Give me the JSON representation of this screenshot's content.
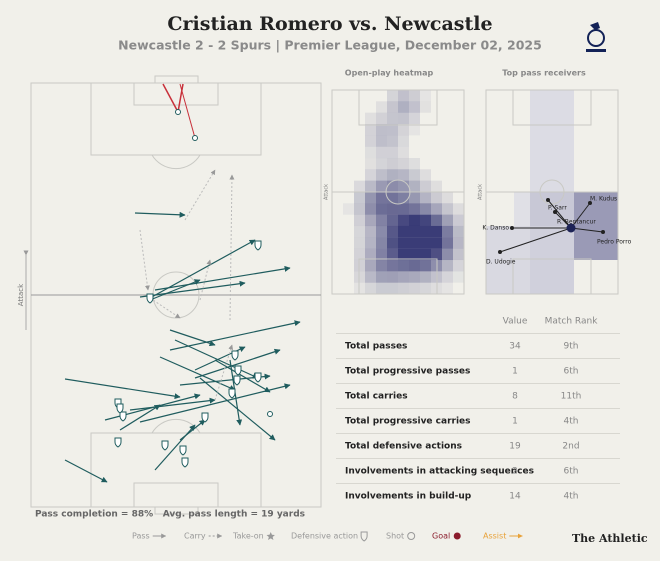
{
  "header": {
    "title": "Cristian Romero vs. Newcastle",
    "subtitle": "Newcastle 2 - 2 Spurs | Premier League, December 02, 2025"
  },
  "pitch": {
    "direction_label": "Attack",
    "pass_completion": "Pass completion = 88%",
    "avg_pass_length": "Avg. pass length = 19 yards"
  },
  "heatmap": {
    "title": "Open-play heatmap",
    "direction_label": "Attack"
  },
  "receivers": {
    "title": "Top pass receivers",
    "direction_label": "Attack",
    "players": [
      "P. Sarr",
      "M. Kudus",
      "R. Bentancur",
      "K. Danso",
      "Pedro Porro",
      "D. Udogie"
    ]
  },
  "table": {
    "columns": [
      "Value",
      "Match Rank"
    ],
    "rows": [
      [
        "Total passes",
        34,
        "9th"
      ],
      [
        "Total progressive passes",
        1,
        "6th"
      ],
      [
        "Total carries",
        8,
        "11th"
      ],
      [
        "Total progressive carries",
        1,
        "4th"
      ],
      [
        "Total defensive actions",
        19,
        "2nd"
      ],
      [
        "Involvements in attacking sequences",
        2,
        "6th"
      ],
      [
        "Involvements in build-up",
        14,
        "4th"
      ]
    ]
  },
  "legend": [
    "Pass",
    "Carry",
    "Take-on",
    "Defensive action",
    "Shot",
    "Goal",
    "Assist"
  ],
  "footer": {
    "brand": "The Athletic"
  }
}
